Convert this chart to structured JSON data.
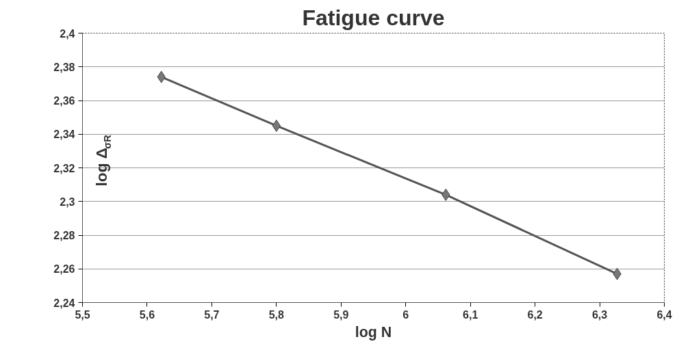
{
  "chart_data": {
    "type": "line",
    "title": "Fatigue curve",
    "xlabel": "log N",
    "ylabel": "log Δ$_{σR}$",
    "x": [
      5.622,
      5.8,
      6.062,
      6.327
    ],
    "series": [
      {
        "color": "#555555",
        "values": [
          2.374,
          2.345,
          2.304,
          2.257
        ]
      }
    ],
    "marker": "diamond",
    "line_style": "solid",
    "grid": "y",
    "xlim": [
      5.5,
      6.4
    ],
    "ylim": [
      2.24,
      2.4
    ],
    "xticks": [
      {
        "value": 5.5,
        "label": "5,5"
      },
      {
        "value": 5.6,
        "label": "5,6"
      },
      {
        "value": 5.7,
        "label": "5,7"
      },
      {
        "value": 5.8,
        "label": "5,8"
      },
      {
        "value": 5.9,
        "label": "5,9"
      },
      6,
      {
        "value": 6.1,
        "label": "6,1"
      },
      {
        "value": 6.2,
        "label": "6,2"
      },
      {
        "value": 6.3,
        "label": "6,3"
      },
      {
        "value": 6.4,
        "label": "6,4"
      }
    ],
    "yticks": [
      {
        "value": 2.24,
        "label": "2,24"
      },
      {
        "value": 2.26,
        "label": "2,26"
      },
      {
        "value": 2.28,
        "label": "2,28"
      },
      {
        "value": 2.3,
        "label": "2,3"
      },
      {
        "value": 2.32,
        "label": "2,32"
      },
      {
        "value": 2.34,
        "label": "2,34"
      },
      {
        "value": 2.36,
        "label": "2,36"
      },
      {
        "value": 2.38,
        "label": "2,38"
      },
      {
        "value": 2.4,
        "label": "2,4"
      }
    ]
  }
}
